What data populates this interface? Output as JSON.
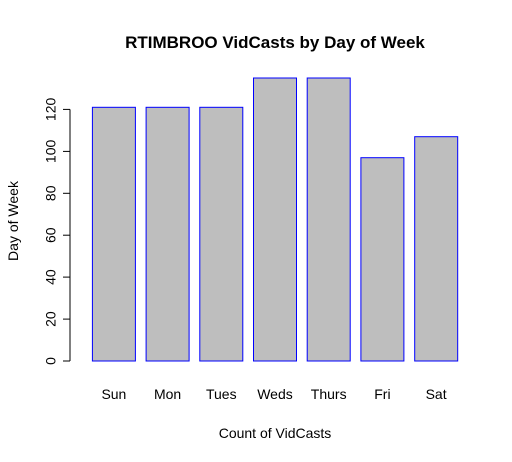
{
  "chart_data": {
    "type": "bar",
    "title": "RTIMBROO VidCasts by Day of Week",
    "xlabel": "Count of VidCasts",
    "ylabel": "Day of Week",
    "categories": [
      "Sun",
      "Mon",
      "Tues",
      "Weds",
      "Thurs",
      "Fri",
      "Sat"
    ],
    "values": [
      121,
      121,
      121,
      135,
      135,
      97,
      107
    ],
    "ylim": [
      0,
      135
    ],
    "yticks": [
      "0",
      "20",
      "40",
      "60",
      "80",
      "100",
      "120"
    ],
    "grid": false,
    "colors": {
      "bar_fill": "#bebebe",
      "bar_stroke": "#0000ff",
      "axis": "#000000"
    }
  }
}
